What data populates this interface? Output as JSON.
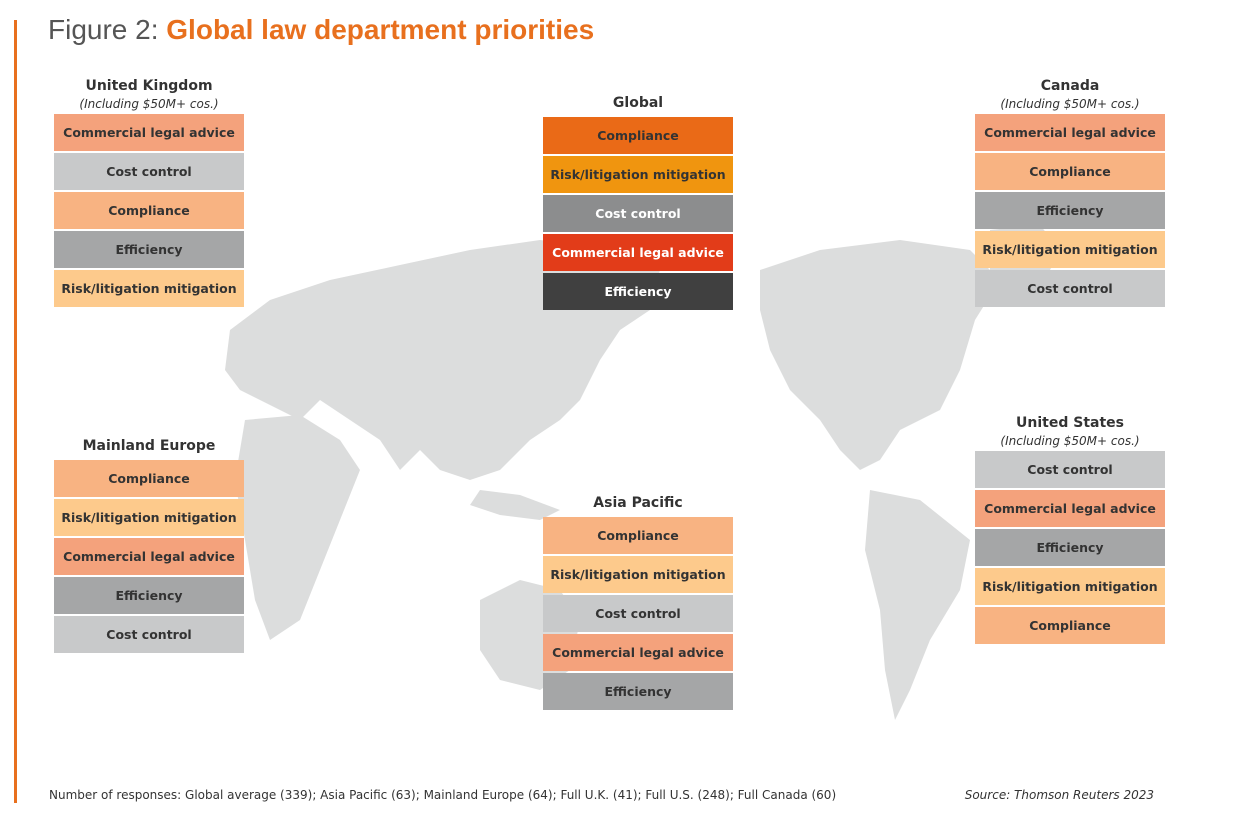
{
  "header": {
    "prefix": "Figure 2:",
    "title": "Global law department priorities"
  },
  "panels": [
    {
      "title": "United Kingdom",
      "subtitle": "(Including $50M+ cos.)",
      "items": [
        {
          "label": "Commercial legal advice",
          "color": "#f4a27c"
        },
        {
          "label": "Cost control",
          "color": "#c8c9ca"
        },
        {
          "label": "Compliance",
          "color": "#f8b382"
        },
        {
          "label": "Efficiency",
          "color": "#a5a6a7"
        },
        {
          "label": "Risk/litigation mitigation",
          "color": "#fdca8c"
        }
      ]
    },
    {
      "title": "Global",
      "items": [
        {
          "label": "Compliance",
          "color": "#ea6a17",
          "text_color": "#333333"
        },
        {
          "label": "Risk/litigation mitigation",
          "color": "#f0950f",
          "text_color": "#333333"
        },
        {
          "label": "Cost control",
          "color": "#8c8d8e",
          "text_color": "#ffffff"
        },
        {
          "label": "Commercial legal advice",
          "color": "#e23c19",
          "text_color": "#ffffff"
        },
        {
          "label": "Efficiency",
          "color": "#404040",
          "text_color": "#ffffff"
        }
      ]
    },
    {
      "title": "Canada",
      "subtitle": "(Including $50M+ cos.)",
      "items": [
        {
          "label": "Commercial legal advice",
          "color": "#f4a27c"
        },
        {
          "label": "Compliance",
          "color": "#f8b382"
        },
        {
          "label": "Efficiency",
          "color": "#a5a6a7"
        },
        {
          "label": "Risk/litigation mitigation",
          "color": "#fdca8c"
        },
        {
          "label": "Cost control",
          "color": "#c8c9ca"
        }
      ]
    },
    {
      "title": "Mainland Europe",
      "items": [
        {
          "label": "Compliance",
          "color": "#f8b382"
        },
        {
          "label": "Risk/litigation mitigation",
          "color": "#fdca8c"
        },
        {
          "label": "Commercial legal advice",
          "color": "#f4a27c"
        },
        {
          "label": "Efficiency",
          "color": "#a5a6a7"
        },
        {
          "label": "Cost control",
          "color": "#c8c9ca"
        }
      ]
    },
    {
      "title": "Asia Pacific",
      "items": [
        {
          "label": "Compliance",
          "color": "#f8b382"
        },
        {
          "label": "Risk/litigation mitigation",
          "color": "#fdca8c"
        },
        {
          "label": "Cost control",
          "color": "#c8c9ca"
        },
        {
          "label": "Commercial legal advice",
          "color": "#f4a27c"
        },
        {
          "label": "Efficiency",
          "color": "#a5a6a7"
        }
      ]
    },
    {
      "title": "United States",
      "subtitle": "(Including $50M+ cos.)",
      "items": [
        {
          "label": "Cost control",
          "color": "#c8c9ca"
        },
        {
          "label": "Commercial legal advice",
          "color": "#f4a27c"
        },
        {
          "label": "Efficiency",
          "color": "#a5a6a7"
        },
        {
          "label": "Risk/litigation mitigation",
          "color": "#fdca8c"
        },
        {
          "label": "Compliance",
          "color": "#f8b382"
        }
      ]
    }
  ],
  "footer": {
    "note": "Number of responses: Global average (339); Asia Pacific (63); Mainland Europe (64); Full U.K. (41); Full U.S. (248); Full Canada (60)",
    "source": "Source: Thomson Reuters 2023"
  }
}
